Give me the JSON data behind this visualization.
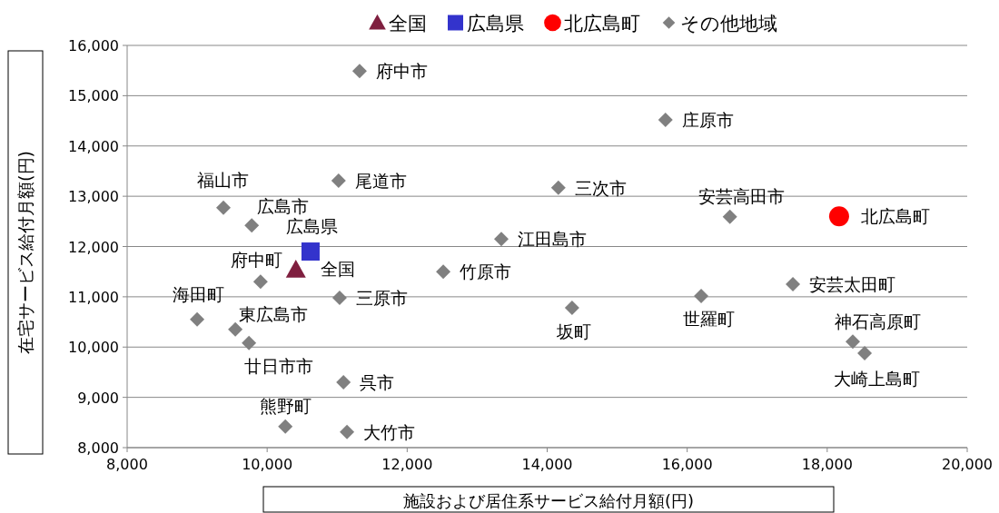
{
  "chart_data": {
    "type": "scatter",
    "xlabel": "施設および居住系サービス給付月額(円)",
    "ylabel": "在宅サービス給付月額(円)",
    "xlim": [
      8000,
      20000
    ],
    "ylim": [
      8000,
      16000
    ],
    "xticks": [
      {
        "value": 8000,
        "label": "8,000"
      },
      {
        "value": 10000,
        "label": "10,000"
      },
      {
        "value": 12000,
        "label": "12,000"
      },
      {
        "value": 14000,
        "label": "14,000"
      },
      {
        "value": 16000,
        "label": "16,000"
      },
      {
        "value": 18000,
        "label": "18,000"
      },
      {
        "value": 20000,
        "label": "20,000"
      }
    ],
    "yticks": [
      {
        "value": 8000,
        "label": "8,000"
      },
      {
        "value": 9000,
        "label": "9,000"
      },
      {
        "value": 10000,
        "label": "10,000"
      },
      {
        "value": 11000,
        "label": "11,000"
      },
      {
        "value": 12000,
        "label": "12,000"
      },
      {
        "value": 13000,
        "label": "13,000"
      },
      {
        "value": 14000,
        "label": "14,000"
      },
      {
        "value": 15000,
        "label": "15,000"
      },
      {
        "value": 16000,
        "label": "16,000"
      }
    ],
    "grid": "y",
    "legend": "top",
    "series": [
      {
        "name": "全国",
        "color": "#7f1f3f",
        "marker": "triangle",
        "x": [
          10410
        ],
        "values": [
          11540
        ]
      },
      {
        "name": "広島県",
        "color": "#3333cc",
        "marker": "square",
        "x": [
          10620
        ],
        "values": [
          11900
        ]
      },
      {
        "name": "北広島町",
        "color": "#ff0000",
        "marker": "circle",
        "x": [
          18170
        ],
        "values": [
          12600
        ]
      },
      {
        "name": "その他地域",
        "color": "#808080",
        "marker": "diamond",
        "x": [
          11320,
          15690,
          9375,
          11020,
          14160,
          9780,
          16610,
          13345,
          12515,
          9905,
          11035,
          14355,
          16200,
          17510,
          9000,
          9545,
          9740,
          18365,
          18535,
          11090,
          10260,
          11140
        ],
        "values": [
          15490,
          14520,
          12770,
          13310,
          13170,
          12420,
          12590,
          12150,
          11500,
          11300,
          10980,
          10780,
          11015,
          11250,
          10550,
          10350,
          10080,
          10110,
          9880,
          9300,
          8420,
          8310
        ]
      }
    ],
    "annotations": [
      {
        "text": "全国",
        "x": 10410,
        "y": 11540
      },
      {
        "text": "広島県",
        "x": 10620,
        "y": 11900
      },
      {
        "text": "北広島町",
        "x": 18170,
        "y": 12600
      },
      {
        "text": "府中市",
        "x": 11320,
        "y": 15490
      },
      {
        "text": "庄原市",
        "x": 15690,
        "y": 14520
      },
      {
        "text": "福山市",
        "x": 9375,
        "y": 12770
      },
      {
        "text": "尾道市",
        "x": 11020,
        "y": 13310
      },
      {
        "text": "三次市",
        "x": 14160,
        "y": 13170
      },
      {
        "text": "広島市",
        "x": 9780,
        "y": 12420
      },
      {
        "text": "安芸高田市",
        "x": 16610,
        "y": 12590
      },
      {
        "text": "江田島市",
        "x": 13345,
        "y": 12150
      },
      {
        "text": "竹原市",
        "x": 12515,
        "y": 11500
      },
      {
        "text": "府中町",
        "x": 9905,
        "y": 11305
      },
      {
        "text": "三原市",
        "x": 11035,
        "y": 10980
      },
      {
        "text": "坂町",
        "x": 14355,
        "y": 10780
      },
      {
        "text": "世羅町",
        "x": 16200,
        "y": 11015
      },
      {
        "text": "安芸太田町",
        "x": 17510,
        "y": 11250
      },
      {
        "text": "海田町",
        "x": 9000,
        "y": 10550
      },
      {
        "text": "東広島市",
        "x": 9545,
        "y": 10350
      },
      {
        "text": "廿日市市",
        "x": 9740,
        "y": 10080
      },
      {
        "text": "神石高原町",
        "x": 18365,
        "y": 10110
      },
      {
        "text": "大崎上島町",
        "x": 18535,
        "y": 9880
      },
      {
        "text": "呉市",
        "x": 11090,
        "y": 9300
      },
      {
        "text": "熊野町",
        "x": 10260,
        "y": 8420
      },
      {
        "text": "大竹市",
        "x": 11140,
        "y": 8310
      }
    ]
  }
}
